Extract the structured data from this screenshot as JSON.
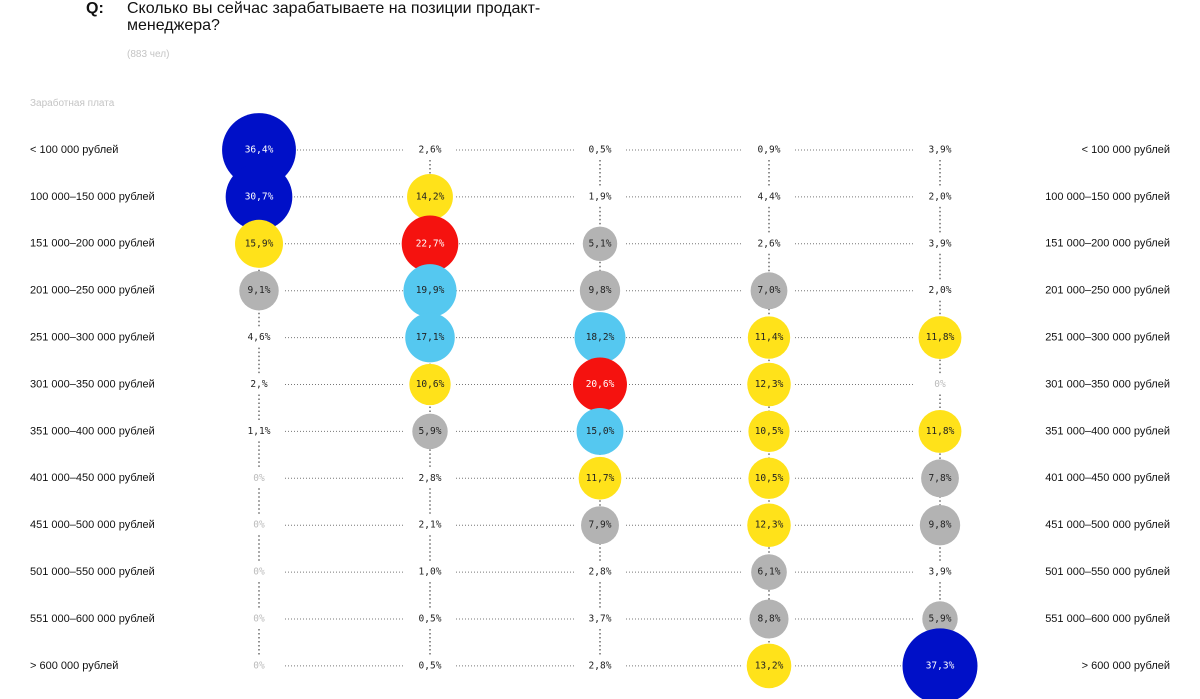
{
  "chart_data": {
    "type": "bubble-grid",
    "question_marker": "Q:",
    "title": "Сколько вы сейчас зарабатываете на позиции продакт-менеджера?",
    "subtitle": "(883 чел)",
    "y_label": "Заработная плата",
    "categories": [
      "< 100 000 рублей",
      "100 000–150 000 рублей",
      "151 000–200 000 рублей",
      "201 000–250 000 рублей",
      "251 000–300 000 рублей",
      "301 000–350 000 рублей",
      "351 000–400 000 рублей",
      "401 000–450 000 рублей",
      "451 000–500 000 рублей",
      "501 000–550 000 рублей",
      "551 000–600 000 рублей",
      "> 600 000 рублей"
    ],
    "series": [
      {
        "values": [
          36.4,
          30.7,
          15.9,
          9.1,
          4.6,
          2,
          1.1,
          0,
          0,
          0,
          0,
          0
        ],
        "value_labels": [
          "36,4%",
          "30,7%",
          "15,9%",
          "9,1%",
          "4,6%",
          "2,%",
          "1,1%",
          "0%",
          "0%",
          "0%",
          "0%",
          "0%"
        ],
        "colors": [
          "#0010c8",
          "#0010c8",
          "#ffe21a",
          "#b3b3b3",
          null,
          null,
          null,
          null,
          null,
          null,
          null,
          null
        ]
      },
      {
        "values": [
          2.6,
          14.2,
          22.7,
          19.9,
          17.1,
          10.6,
          5.9,
          2.8,
          2.1,
          1.0,
          0.5,
          0.5
        ],
        "value_labels": [
          "2,6%",
          "14,2%",
          "22,7%",
          "19,9%",
          "17,1%",
          "10,6%",
          "5,9%",
          "2,8%",
          "2,1%",
          "1,0%",
          "0,5%",
          "0,5%"
        ],
        "colors": [
          null,
          "#ffe21a",
          "#f5120f",
          "#55c8f0",
          "#55c8f0",
          "#ffe21a",
          "#b3b3b3",
          null,
          null,
          null,
          null,
          null
        ]
      },
      {
        "values": [
          0.5,
          1.9,
          5.1,
          9.8,
          18.2,
          20.6,
          15.0,
          11.7,
          7.9,
          2.8,
          3.7,
          2.8
        ],
        "value_labels": [
          "0,5%",
          "1,9%",
          "5,1%",
          "9,8%",
          "18,2%",
          "20,6%",
          "15,0%",
          "11,7%",
          "7,9%",
          "2,8%",
          "3,7%",
          "2,8%"
        ],
        "colors": [
          null,
          null,
          "#b3b3b3",
          "#b3b3b3",
          "#55c8f0",
          "#f5120f",
          "#55c8f0",
          "#ffe21a",
          "#b3b3b3",
          null,
          null,
          null
        ]
      },
      {
        "values": [
          0.9,
          4.4,
          2.6,
          7.0,
          11.4,
          12.3,
          10.5,
          10.5,
          12.3,
          6.1,
          8.8,
          13.2
        ],
        "value_labels": [
          "0,9%",
          "4,4%",
          "2,6%",
          "7,0%",
          "11,4%",
          "12,3%",
          "10,5%",
          "10,5%",
          "12,3%",
          "6,1%",
          "8,8%",
          "13,2%"
        ],
        "colors": [
          null,
          null,
          null,
          "#b3b3b3",
          "#ffe21a",
          "#ffe21a",
          "#ffe21a",
          "#ffe21a",
          "#ffe21a",
          "#b3b3b3",
          "#b3b3b3",
          "#ffe21a"
        ]
      },
      {
        "values": [
          3.9,
          2.0,
          3.9,
          2.0,
          11.8,
          0,
          11.8,
          7.8,
          9.8,
          3.9,
          5.9,
          37.3
        ],
        "value_labels": [
          "3,9%",
          "2,0%",
          "3,9%",
          "2,0%",
          "11,8%",
          "0%",
          "11,8%",
          "7,8%",
          "9,8%",
          "3,9%",
          "5,9%",
          "37,3%"
        ],
        "colors": [
          null,
          null,
          null,
          null,
          "#ffe21a",
          null,
          "#ffe21a",
          "#b3b3b3",
          "#b3b3b3",
          null,
          "#b3b3b3",
          "#0010c8"
        ]
      }
    ]
  }
}
